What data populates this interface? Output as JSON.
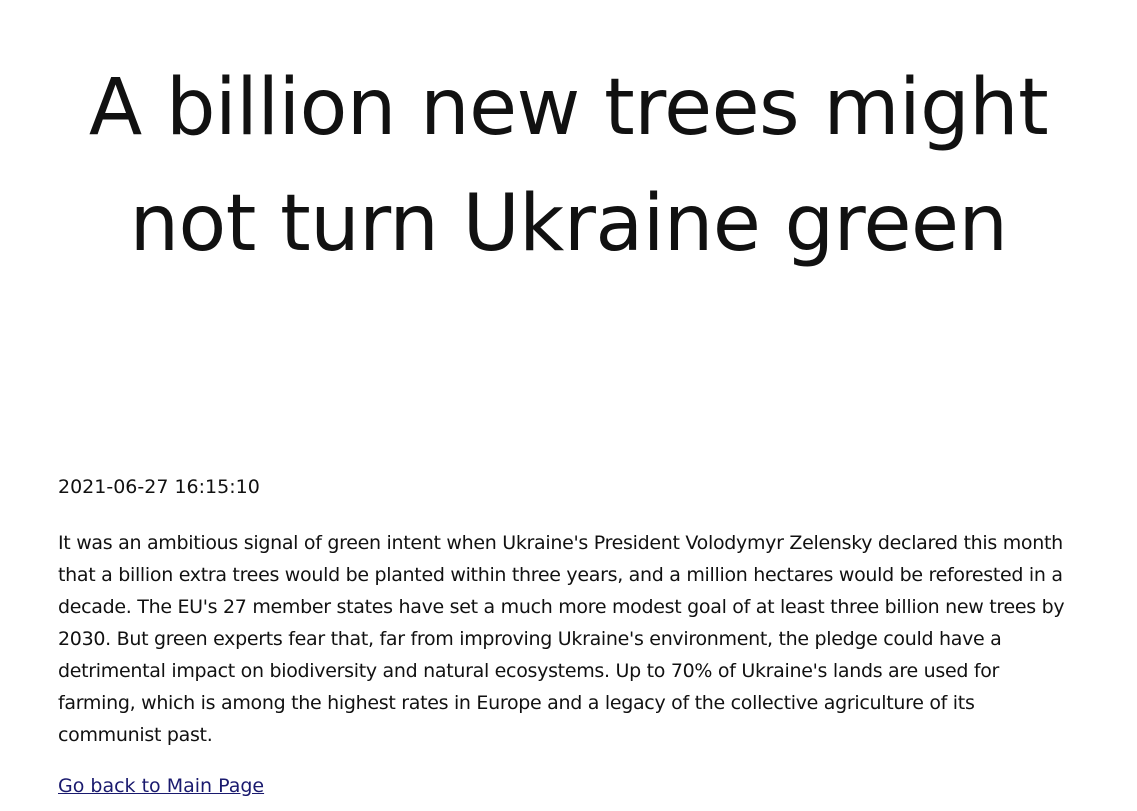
{
  "article": {
    "title": "A billion new trees might not turn Ukraine green",
    "timestamp": "2021-06-27 16:15:10",
    "body": "It was an ambitious signal of green intent when Ukraine's President Volodymyr Zelensky declared this month that a billion extra trees would be planted within three years, and a million hectares would be reforested in a decade. The EU's 27 member states have set a much more modest goal of at least three billion new trees by 2030. But green experts fear that, far from improving Ukraine's environment, the pledge could have a detrimental impact on biodiversity and natural ecosystems. Up to 70% of Ukraine's lands are used for farming, which is among the highest rates in Europe and a legacy of the collective agriculture of its communist past."
  },
  "navigation": {
    "back_link_label": "Go back to Main Page"
  },
  "colors": {
    "text": "#111111",
    "link": "#1a1a6e",
    "background": "#ffffff"
  }
}
